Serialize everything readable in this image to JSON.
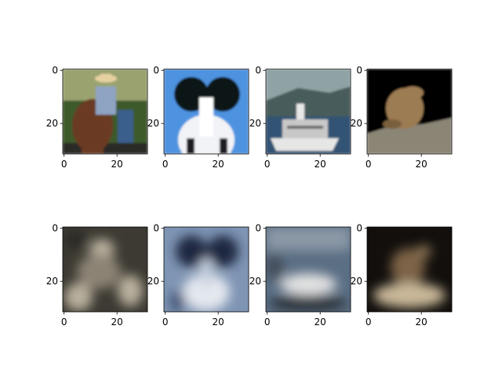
{
  "figure": {
    "background": "#ffffff",
    "rows": [
      {
        "row_kind": "original",
        "panels": [
          {
            "subject_icon": "horse-rider-photo",
            "colors": {
              "sky": "#9aa36f",
              "grass": "#3d5a2c",
              "horse": "#6b3a24",
              "rider": "#8fa3c2",
              "hat": "#e7d1a2",
              "ground": "#2c2c28"
            }
          },
          {
            "subject_icon": "papillon-dog-photo",
            "colors": {
              "bg": "#4d93e0",
              "ear": "#111218",
              "face": "#ffffff",
              "chest": "#f1f3f6"
            }
          },
          {
            "subject_icon": "ship-photo",
            "colors": {
              "sky": "#8fa3a5",
              "hill": "#4a5c5c",
              "water": "#335273",
              "hull": "#e6e6e6",
              "cabin": "#c8c8c8"
            }
          },
          {
            "subject_icon": "frog-photo",
            "colors": {
              "bg": "#000000",
              "frog": "#9c7b52",
              "rock": "#8b8576"
            }
          }
        ]
      },
      {
        "row_kind": "reconstruction",
        "panels": [
          {
            "subject_icon": "blurry-horse-reconstruction",
            "colors": {
              "bg": "#3c3a32",
              "mid": "#8c8374",
              "light": "#b9b09e"
            }
          },
          {
            "subject_icon": "blurry-dog-reconstruction",
            "colors": {
              "bg": "#7f95b4",
              "dark": "#1e2840",
              "light": "#e4e8ef"
            }
          },
          {
            "subject_icon": "blurry-ship-reconstruction",
            "colors": {
              "bg": "#5a6e84",
              "dark": "#2c3038",
              "light": "#e1e1e1"
            }
          },
          {
            "subject_icon": "blurry-frog-reconstruction",
            "colors": {
              "bg": "#120f0c",
              "mid": "#7d6446",
              "light": "#c9b899"
            }
          }
        ]
      }
    ],
    "axes": {
      "x_ticks": [
        "0",
        "20"
      ],
      "y_ticks": [
        "0",
        "20"
      ]
    }
  }
}
